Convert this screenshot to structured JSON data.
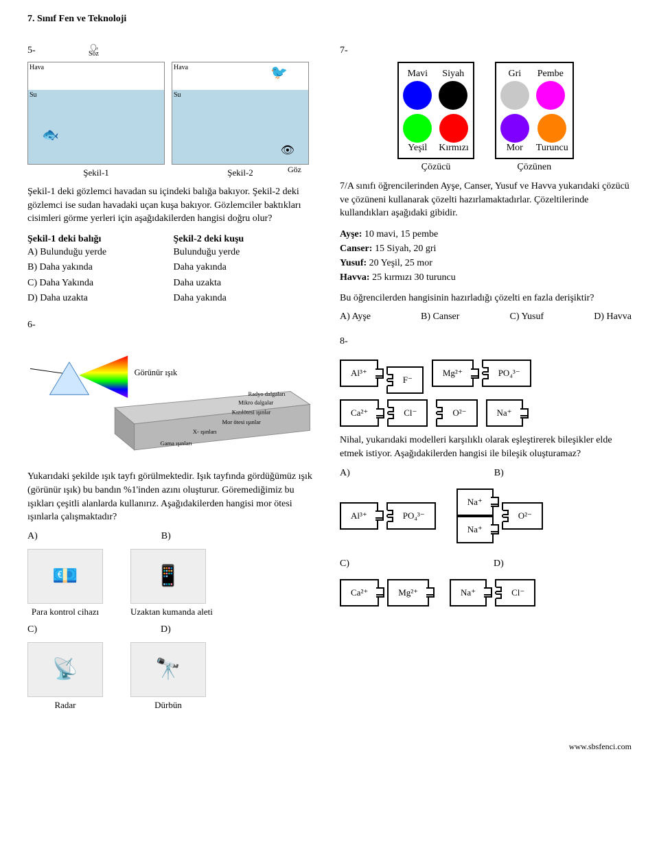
{
  "header": "7. Sınıf Fen ve Teknoloji",
  "footer": "www.sbsfenci.com",
  "q5": {
    "num": "5-",
    "fig1_caption": "Şekil-1",
    "fig2_caption": "Şekil-2",
    "hava": "Hava",
    "su": "Su",
    "goz": "Göz",
    "soz": "Söz",
    "text": "Şekil-1 deki gözlemci havadan su içindeki balığa bakıyor. Şekil-2 deki gözlemci ise sudan havadaki uçan kuşa bakıyor. Gözlemciler baktıkları cisimleri görme yerleri için aşağıdakilerden hangisi doğru olur?",
    "col1_head": "Şekil-1 deki balığı",
    "col2_head": "Şekil-2 deki kuşu",
    "opts": [
      {
        "l": "A)",
        "c1": "Bulunduğu yerde",
        "c2": "Bulunduğu yerde"
      },
      {
        "l": "B)",
        "c1": "Daha yakında",
        "c2": "Daha yakında"
      },
      {
        "l": "C)",
        "c1": "Daha Yakında",
        "c2": "Daha uzakta"
      },
      {
        "l": "D)",
        "c1": "Daha uzakta",
        "c2": "Daha yakında"
      }
    ]
  },
  "q6": {
    "num": "6-",
    "gorunur": "Görünür ışık",
    "radyo": "Radyo dalgaları",
    "mikro": "Mikro dalgalar",
    "kizil": "Kızılötesi ışınlar",
    "mor": "Mor ötesi ışınlar",
    "xray": "X- ışınları",
    "gama": "Gama ışınları",
    "text": "Yukarıdaki şekilde ışık tayfı görülmektedir. Işık tayfında gördüğümüz ışık (görünür ışık) bu bandın %1'inden azını oluşturur. Göremediğimiz bu ışıkları çeşitli alanlarda kullanırız. Aşağıdakilerden hangisi mor ötesi ışınlarla çalışmaktadır?",
    "optA": "A)",
    "optB": "B)",
    "optC": "C)",
    "optD": "D)",
    "dev_a": "Para kontrol cihazı",
    "dev_b": "Uzaktan kumanda aleti",
    "dev_c": "Radar",
    "dev_d": "Dürbün"
  },
  "q7": {
    "num": "7-",
    "colors_top": [
      {
        "name": "Mavi",
        "hex": "#0000ff"
      },
      {
        "name": "Siyah",
        "hex": "#000000"
      },
      {
        "name": "Gri",
        "hex": "#c8c8c8"
      },
      {
        "name": "Pembe",
        "hex": "#ff00ff"
      }
    ],
    "colors_bot": [
      {
        "name": "Yeşil",
        "hex": "#00ff00"
      },
      {
        "name": "Kırmızı",
        "hex": "#ff0000"
      },
      {
        "name": "Mor",
        "hex": "#8000ff"
      },
      {
        "name": "Turuncu",
        "hex": "#ff8000"
      }
    ],
    "box1_cap": "Çözücü",
    "box2_cap": "Çözünen",
    "text1": "7/A sınıfı öğrencilerinden Ayşe, Canser, Yusuf ve Havva yukarıdaki çözücü ve çözüneni kullanarak çözelti hazırlamaktadırlar. Çözeltilerinde kullandıkları aşağıdaki gibidir.",
    "mix": [
      {
        "bold": "Ayşe:",
        "rest": " 10 mavi, 15 pembe"
      },
      {
        "bold": "Canser:",
        "rest": " 15 Siyah, 20 gri"
      },
      {
        "bold": "Yusuf:",
        "rest": " 20 Yeşil, 25 mor"
      },
      {
        "bold": "Havva:",
        "rest": " 25 kırmızı 30 turuncu"
      }
    ],
    "text2": "Bu öğrencilerden hangisinin hazırladığı çözelti en fazla derişiktir?",
    "opts": {
      "a": "A) Ayşe",
      "b": "B) Canser",
      "c": "C) Yusuf",
      "d": "D) Havva"
    }
  },
  "q8": {
    "num": "8-",
    "row1": [
      "Al³⁺",
      "F⁻",
      "Mg²⁺",
      "PO₄³⁻"
    ],
    "row2": [
      "Ca²⁺",
      "Cl⁻",
      "O²⁻",
      "Na⁺"
    ],
    "text": "Nihal, yukarıdaki modelleri karşılıklı olarak eşleştirerek bileşikler elde etmek istiyor. Aşağıdakilerden hangisi ile bileşik oluşturamaz?",
    "optA": "A)",
    "optB": "B)",
    "optC": "C)",
    "optD": "D)",
    "pairs": {
      "a": [
        "Al³⁺",
        "PO₄³⁻"
      ],
      "b": [
        "Na⁺",
        "Na⁺",
        "O²⁻"
      ],
      "c": [
        "Ca²⁺",
        "Mg²⁺"
      ],
      "d": [
        "Na⁺",
        "Cl⁻"
      ]
    }
  }
}
